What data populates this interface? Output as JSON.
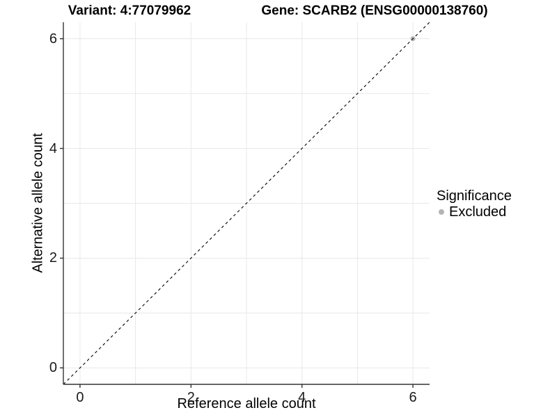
{
  "chart_data": {
    "type": "scatter",
    "title_left": "Variant: 4:77079962",
    "title_right": "Gene: SCARB2 (ENSG00000138760)",
    "xlabel": "Reference allele count",
    "ylabel": "Alternative allele count",
    "xlim": [
      -0.3,
      6.3
    ],
    "ylim": [
      -0.3,
      6.3
    ],
    "x_ticks": [
      0,
      2,
      4,
      6
    ],
    "y_ticks": [
      0,
      2,
      4,
      6
    ],
    "grid_every": 1,
    "grid_on": true,
    "grid_color": "#e8e8e8",
    "axis_color": "#333333",
    "background": "#ffffff",
    "identity_line": {
      "style": "dashed",
      "color": "#000000",
      "from": [
        -0.3,
        -0.3
      ],
      "to": [
        6.3,
        6.3
      ]
    },
    "series": [
      {
        "name": "Excluded",
        "color": "#b4b4b4",
        "points": [
          [
            6,
            6
          ]
        ]
      }
    ],
    "legend": {
      "title": "Significance",
      "position": "right",
      "items": [
        {
          "label": "Excluded",
          "color": "#b4b4b4"
        }
      ]
    }
  }
}
